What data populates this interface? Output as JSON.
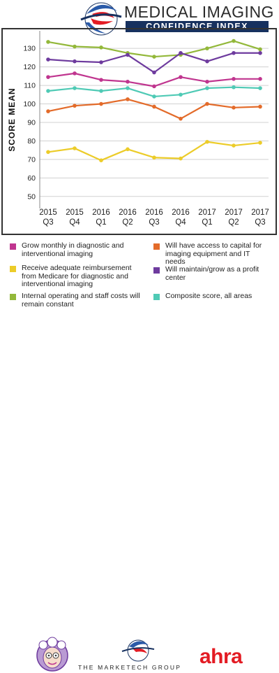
{
  "header": {
    "title_line1": "MEDICAL IMAGING",
    "title_line2": "CONFIDENCE INDEX"
  },
  "colors": {
    "magenta": "#c0358f",
    "orange": "#e36b2a",
    "yellow": "#eccc29",
    "purple": "#6e3b9e",
    "green": "#93b83a",
    "teal": "#4fcab5",
    "navy": "#17315f",
    "ahra_red": "#e31b23"
  },
  "chart_data": {
    "type": "line",
    "ylabel": "SCORE MEAN",
    "xlabel": "",
    "ylim": [
      45,
      138
    ],
    "yticks": [
      50,
      60,
      70,
      80,
      90,
      100,
      110,
      120,
      130
    ],
    "grid": "horizontal",
    "categories": [
      [
        "2015",
        "Q3"
      ],
      [
        "2015",
        "Q4"
      ],
      [
        "2016",
        "Q1"
      ],
      [
        "2016",
        "Q2"
      ],
      [
        "2016",
        "Q3"
      ],
      [
        "2016",
        "Q4"
      ],
      [
        "2017",
        "Q1"
      ],
      [
        "2017",
        "Q2"
      ],
      [
        "2017",
        "Q3"
      ]
    ],
    "series": [
      {
        "name": "Internal operating and staff costs will remain constant",
        "color": "#93b83a",
        "values": [
          133.5,
          131,
          130.5,
          127.5,
          125.5,
          126.5,
          130,
          134,
          129.5
        ]
      },
      {
        "name": "Will maintain/grow as a profit center",
        "color": "#6e3b9e",
        "values": [
          124,
          123,
          122.5,
          126.5,
          117,
          127.5,
          123,
          127.5,
          127.5
        ]
      },
      {
        "name": "Grow monthly in diagnostic and interventional imaging",
        "color": "#c0358f",
        "values": [
          114.5,
          116.5,
          113,
          112,
          109.5,
          114.5,
          112,
          113.5,
          113.5
        ]
      },
      {
        "name": "Composite score, all areas",
        "color": "#4fcab5",
        "values": [
          107,
          108.5,
          107,
          108.5,
          104,
          105,
          108.5,
          109,
          108.5
        ]
      },
      {
        "name": "Will have access to capital for imaging equipment and IT needs",
        "color": "#e36b2a",
        "values": [
          96,
          99,
          100,
          102.5,
          98.5,
          92,
          100,
          98,
          98.5
        ]
      },
      {
        "name": "Receive adequate reimbursement from Medicare for diagnostic and interventional imaging",
        "color": "#eccc29",
        "values": [
          74,
          76,
          69.5,
          75.5,
          71,
          70.5,
          79.5,
          77.5,
          79
        ]
      }
    ]
  },
  "legend": [
    {
      "label": "Grow monthly in diagnostic and interventional imaging",
      "color": "#c0358f"
    },
    {
      "label": "Will have access to capital for imaging equipment and IT needs",
      "color": "#e36b2a"
    },
    {
      "label": "Receive adequate reimbursement from Medicare for diagnostic and interventional imaging",
      "color": "#eccc29"
    },
    {
      "label": "Will maintain/grow as a profit center",
      "color": "#6e3b9e"
    },
    {
      "label": "Internal operating and staff costs will remain constant",
      "color": "#93b83a"
    },
    {
      "label": "Composite score, all areas",
      "color": "#4fcab5"
    }
  ],
  "footer": {
    "marketech_label": "THE MARKETECH GROUP",
    "ahra_label": "ahra"
  }
}
